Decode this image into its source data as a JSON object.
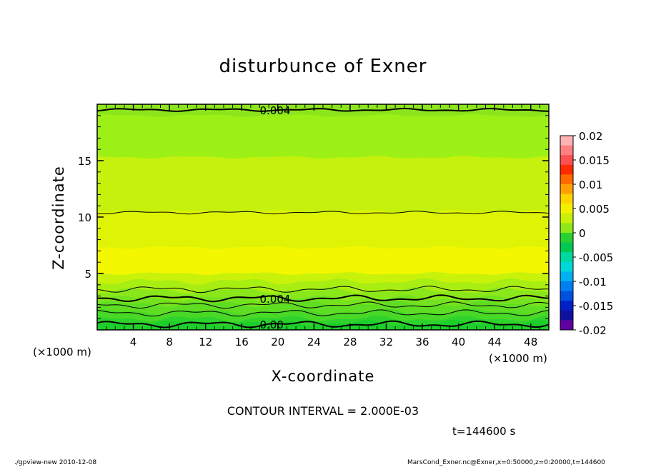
{
  "chart_data": {
    "type": "heatmap",
    "title": "disturbunce of Exner",
    "xlabel": "X-coordinate",
    "ylabel": "Z-coordinate",
    "x_unit_left": "(×1000 m)",
    "x_unit_right": "(×1000 m)",
    "xlim": [
      0,
      50
    ],
    "ylim": [
      0,
      20
    ],
    "x_ticks": [
      4,
      8,
      12,
      16,
      20,
      24,
      28,
      32,
      36,
      40,
      44,
      48
    ],
    "y_ticks": [
      5,
      10,
      15
    ],
    "shaded_bands": [
      {
        "z_top": 0.6,
        "value": 0.0,
        "color": "#1ccf2a"
      },
      {
        "z_top": 1.0,
        "value": 0.0015,
        "color": "#2fd22c"
      },
      {
        "z_top": 1.6,
        "value": 0.002,
        "color": "#48d826"
      },
      {
        "z_top": 2.3,
        "value": 0.0025,
        "color": "#5fdd22"
      },
      {
        "z_top": 2.8,
        "value": 0.003,
        "color": "#74e21e"
      },
      {
        "z_top": 3.5,
        "value": 0.0035,
        "color": "#8ae81a"
      },
      {
        "z_top": 4.3,
        "value": 0.004,
        "color": "#a8ee12"
      },
      {
        "z_top": 5.0,
        "value": 0.0045,
        "color": "#c9f20a"
      },
      {
        "z_top": 7.3,
        "value": 0.0055,
        "color": "#f3f700"
      },
      {
        "z_top": 10.5,
        "value": 0.005,
        "color": "#dff405"
      },
      {
        "z_top": 15.3,
        "value": 0.0045,
        "color": "#c6f10c"
      },
      {
        "z_top": 19.0,
        "value": 0.004,
        "color": "#9df016"
      },
      {
        "z_top": 20.0,
        "value": 0.0035,
        "color": "#8ce51b"
      }
    ],
    "contours": [
      {
        "z": 0.5,
        "label": "0.00",
        "label_x": 18.0,
        "weight": "bold"
      },
      {
        "z": 1.5,
        "label": "",
        "weight": "thin"
      },
      {
        "z": 2.2,
        "label": "",
        "weight": "thin"
      },
      {
        "z": 2.8,
        "label": "0.004",
        "label_x": 18.0,
        "weight": "bold"
      },
      {
        "z": 3.6,
        "label": "",
        "weight": "thin"
      },
      {
        "z": 10.4,
        "label": "",
        "weight": "thin"
      },
      {
        "z": 19.5,
        "label": "0.004",
        "label_x": 18.0,
        "weight": "bold"
      }
    ],
    "colorbar": {
      "ticks": [
        "0.02",
        "0.015",
        "0.01",
        "0.005",
        "0",
        "-0.005",
        "-0.01",
        "-0.015",
        "-0.02"
      ],
      "colors": [
        "#ffb3b3",
        "#ff8080",
        "#ff5050",
        "#ff2a00",
        "#ff6a00",
        "#ffa000",
        "#ffd200",
        "#f2f000",
        "#c8ee0a",
        "#90e818",
        "#28d030",
        "#00c850",
        "#00d8a0",
        "#00d8d8",
        "#00b0f0",
        "#0080f0",
        "#0050e0",
        "#0020c8",
        "#1010a0",
        "#6000a0"
      ]
    },
    "contour_interval": "CONTOUR INTERVAL = 2.000E-03",
    "time_label": "t=144600 s"
  },
  "footer": {
    "left": "./gpview-new   2010-12-08",
    "right": "MarsCond_Exner.nc@Exner,x=0:50000,z=0:20000,t=144600"
  }
}
